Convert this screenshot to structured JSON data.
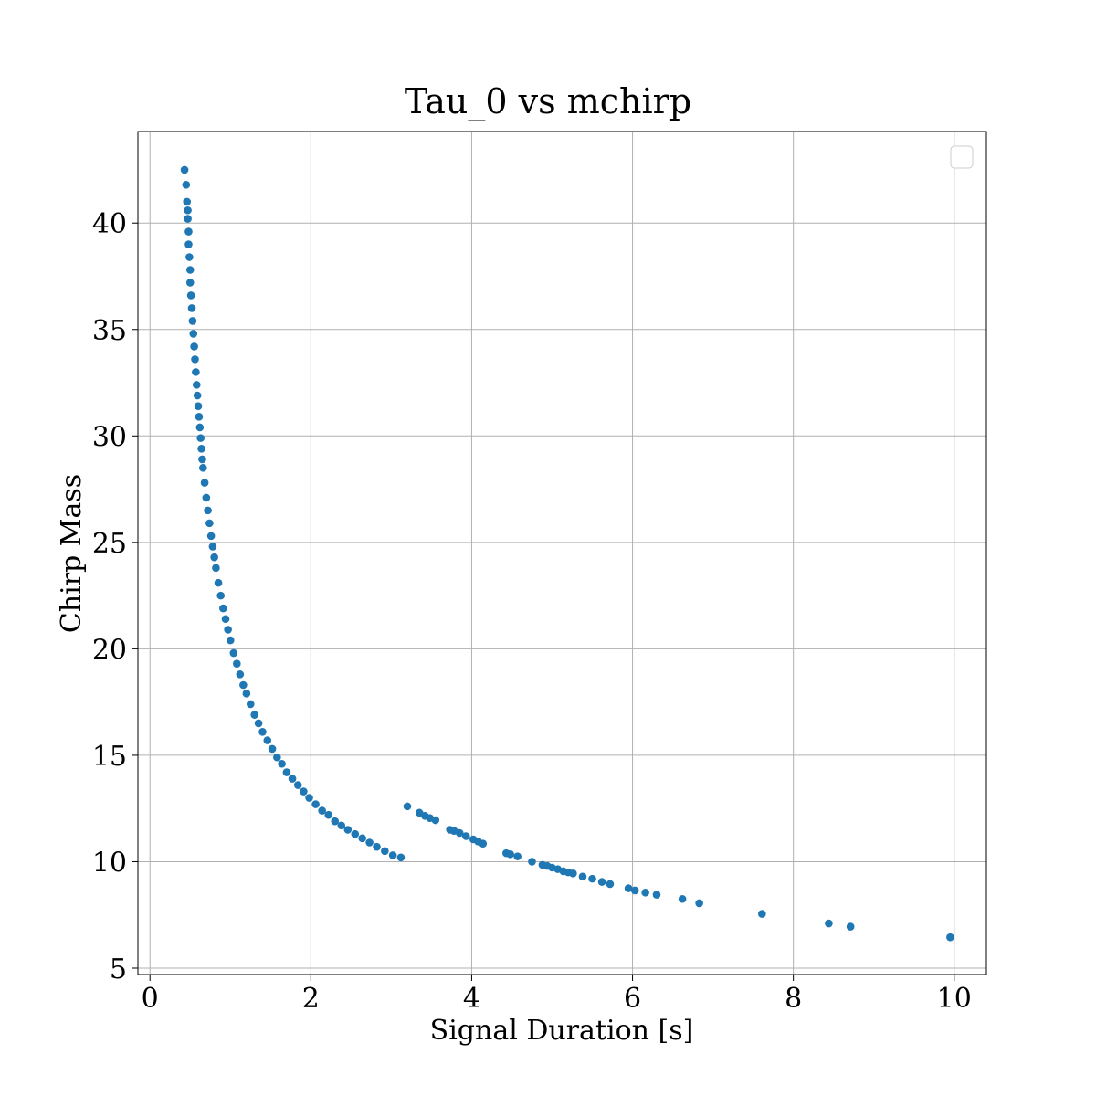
{
  "chart_data": {
    "type": "scatter",
    "title": "Tau_0 vs mchirp",
    "xlabel": "Signal Duration [s]",
    "ylabel": "Chirp Mass",
    "xlim": [
      -0.15,
      10.4
    ],
    "ylim": [
      4.7,
      44.3
    ],
    "xticks": [
      0,
      2,
      4,
      6,
      8,
      10
    ],
    "yticks": [
      5,
      10,
      15,
      20,
      25,
      30,
      35,
      40
    ],
    "xtick_labels": [
      "0",
      "2",
      "4",
      "6",
      "8",
      "10"
    ],
    "ytick_labels": [
      "5",
      "10",
      "15",
      "20",
      "25",
      "30",
      "35",
      "40"
    ],
    "grid": true,
    "legend": "top-right",
    "legend_entries": [],
    "marker_color": "#1f77b4",
    "series": [
      {
        "x": [
          0.43,
          0.45,
          0.46,
          0.47,
          0.47,
          0.48,
          0.48,
          0.49,
          0.5,
          0.5,
          0.51,
          0.52,
          0.53,
          0.54,
          0.55,
          0.56,
          0.57,
          0.58,
          0.59,
          0.6,
          0.61,
          0.62,
          0.63,
          0.64,
          0.65,
          0.66,
          0.68,
          0.7,
          0.72,
          0.74,
          0.76,
          0.78,
          0.8,
          0.82,
          0.85,
          0.88,
          0.91,
          0.94,
          0.97,
          1.0,
          1.04,
          1.08,
          1.12,
          1.16,
          1.2,
          1.25,
          1.3,
          1.35,
          1.4,
          1.46,
          1.52,
          1.58,
          1.64,
          1.7,
          1.77,
          1.84,
          1.91,
          1.98,
          2.06,
          2.14,
          2.22,
          2.3,
          2.38,
          2.46,
          2.55,
          2.64,
          2.73,
          2.82,
          2.92,
          3.02,
          3.12,
          3.2,
          3.35,
          3.42,
          3.48,
          3.55,
          3.73,
          3.78,
          3.85,
          3.93,
          4.02,
          4.08,
          4.14,
          4.43,
          4.48,
          4.57,
          4.75,
          4.88,
          4.94,
          5.0,
          5.07,
          5.14,
          5.2,
          5.26,
          5.38,
          5.5,
          5.62,
          5.72,
          5.95,
          6.03,
          6.16,
          6.3,
          6.62,
          6.83,
          7.61,
          8.44,
          8.71,
          9.95
        ],
        "y": [
          42.5,
          41.8,
          41.0,
          40.6,
          40.2,
          39.6,
          39.0,
          38.4,
          37.8,
          37.2,
          36.6,
          36.0,
          35.4,
          34.8,
          34.2,
          33.6,
          33.0,
          32.4,
          31.9,
          31.4,
          30.9,
          30.4,
          29.9,
          29.4,
          28.9,
          28.5,
          27.8,
          27.1,
          26.5,
          25.9,
          25.3,
          24.8,
          24.3,
          23.8,
          23.1,
          22.5,
          21.9,
          21.4,
          20.9,
          20.4,
          19.8,
          19.3,
          18.8,
          18.3,
          17.9,
          17.4,
          16.9,
          16.5,
          16.1,
          15.7,
          15.3,
          14.9,
          14.6,
          14.2,
          13.9,
          13.6,
          13.3,
          13.0,
          12.7,
          12.4,
          12.2,
          11.9,
          11.7,
          11.5,
          11.3,
          11.1,
          10.9,
          10.7,
          10.5,
          10.3,
          10.2,
          12.6,
          12.3,
          12.15,
          12.05,
          11.95,
          11.5,
          11.45,
          11.35,
          11.2,
          11.05,
          10.95,
          10.85,
          10.4,
          10.35,
          10.25,
          10.0,
          9.85,
          9.8,
          9.72,
          9.65,
          9.55,
          9.5,
          9.45,
          9.3,
          9.2,
          9.05,
          8.95,
          8.75,
          8.65,
          8.55,
          8.45,
          8.25,
          8.05,
          7.55,
          7.1,
          6.95,
          6.45
        ]
      }
    ]
  }
}
